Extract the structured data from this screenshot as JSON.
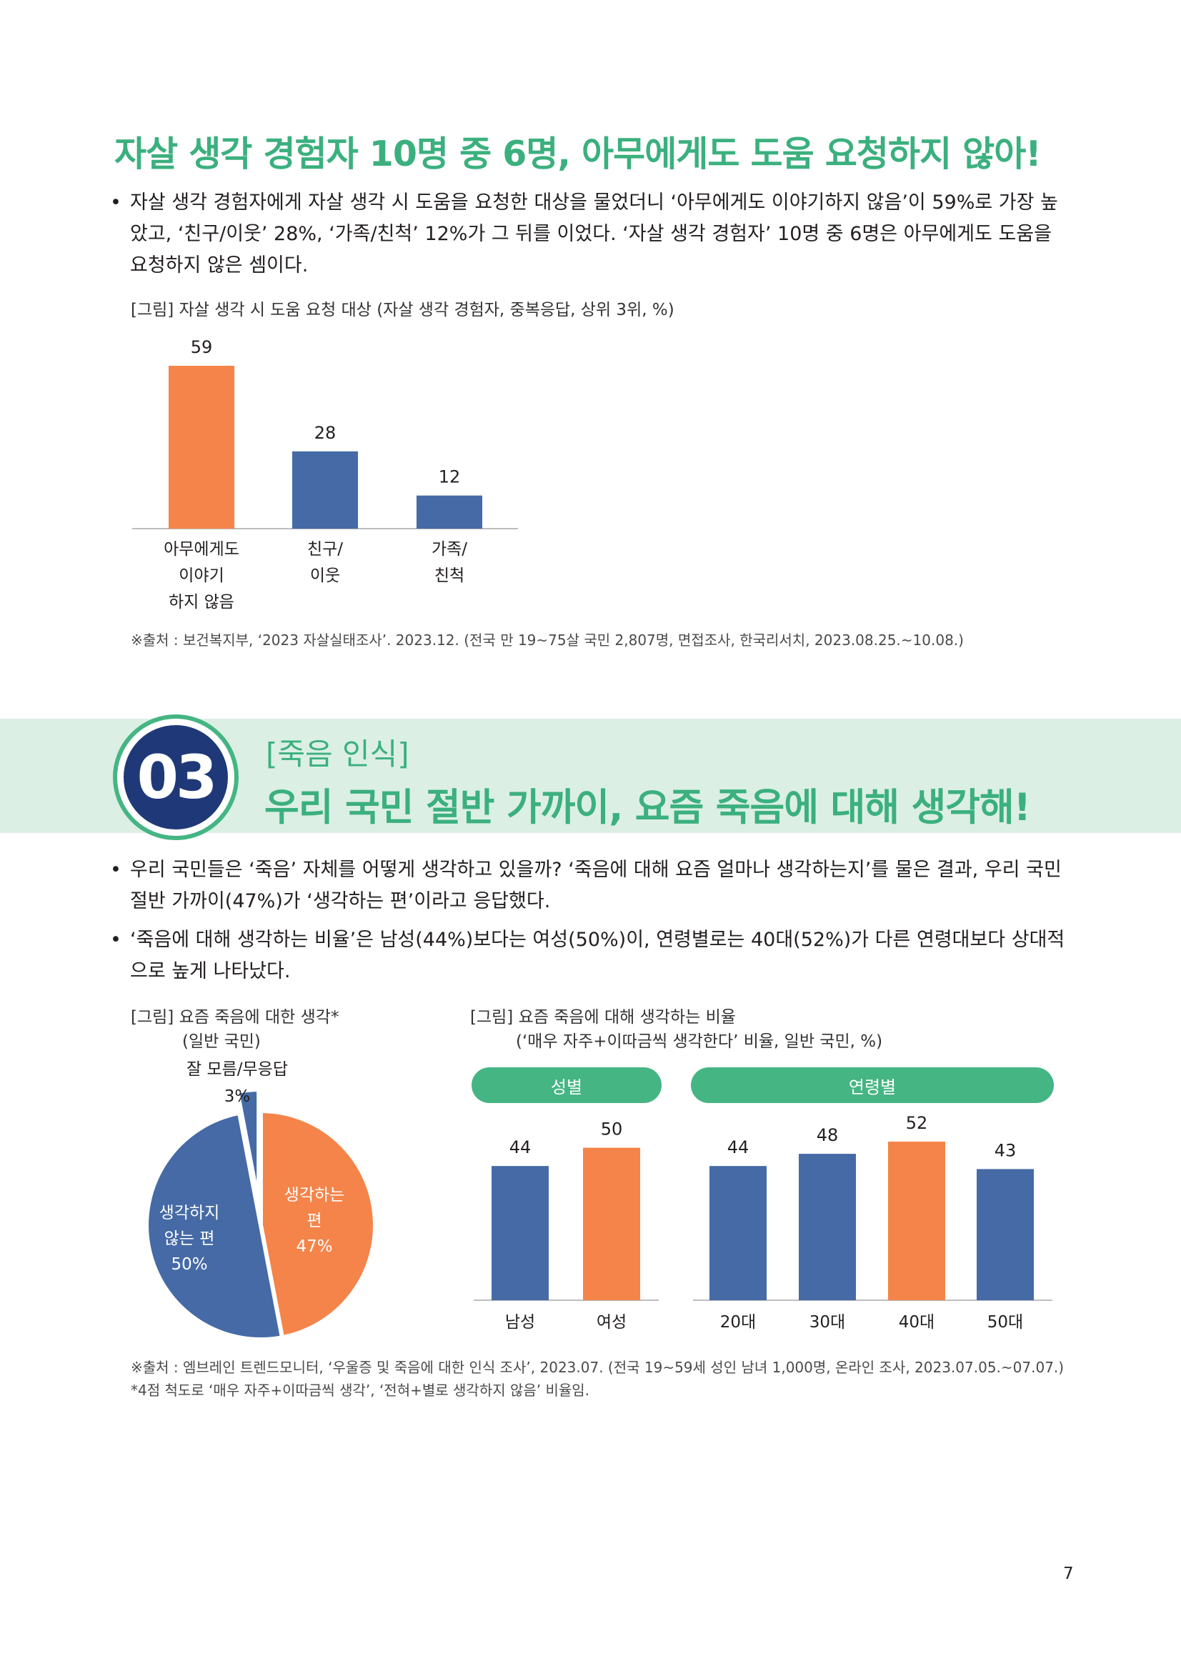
{
  "section1": {
    "title": "자살 생각 경험자 10명 중 6명, 아무에게도 도움 요청하지 않아!",
    "bullet": "자살 생각 경험자에게 자살 생각 시 도움을 요청한 대상을 물었더니 ‘아무에게도 이야기하지 않음’이 59%로 가장 높았고, ‘친구/이웃’ 28%, ‘가족/친척’ 12%가 그 뒤를 이었다. ‘자살 생각 경험자’ 10명 중 6명은 아무에게도 도움을 요청하지 않은 셈이다.",
    "figure_caption": "[그림] 자살 생각 시 도움 요청 대상 (자살 생각 경험자, 중복응답, 상위 3위, %)",
    "source": "※출처 : 보건복지부, ‘2023 자살실태조사’. 2023.12. (전국 만 19~75살 국민 2,807명, 면접조사, 한국리서치, 2023.08.25.~10.08.)"
  },
  "section2": {
    "number": "03",
    "tag": "[죽음 인식]",
    "title": "우리 국민 절반 가까이, 요즘 죽음에 대해 생각해!",
    "bullets": [
      "우리 국민들은 ‘죽음’ 자체를 어떻게 생각하고 있을까? ‘죽음에 대해 요즘 얼마나 생각하는지’를 물은 결과, 우리 국민 절반 가까이(47%)가 ‘생각하는 편’이라고 응답했다.",
      "‘죽음에 대해 생각하는 비율’은 남성(44%)보다는 여성(50%)이, 연령별로는 40대(52%)가 다른 연령대보다 상대적으로 높게 나타났다."
    ],
    "pie_caption_line1": "[그림] 요즘 죽음에 대한 생각*",
    "pie_caption_line2": "(일반 국민)",
    "bar_caption_line1": "[그림] 요즘 죽음에 대해 생각하는 비율",
    "bar_caption_line2": "(‘매우 자주+이따금씩 생각한다’ 비율, 일반 국민, %)",
    "pill_gender": "성별",
    "pill_age": "연령별",
    "source_line1": "※출처 : 엠브레인 트렌드모니터, ‘우울증 및 죽음에 대한 인식 조사’, 2023.07. (전국 19~59세 성인 남녀 1,000명, 온라인 조사, 2023.07.05.~07.07.)",
    "source_line2": "*4점 척도로 ‘매우 자주+이따금씩 생각’, ‘전혀+별로 생각하지 않음’ 비율임."
  },
  "page_number": "7",
  "colors": {
    "orange": "#f5844a",
    "blue": "#456aa6",
    "green": "#45b583",
    "navy": "#1f3978"
  },
  "chart_data": [
    {
      "type": "bar",
      "categories": [
        [
          "아무에게도",
          "이야기",
          "하지 않음"
        ],
        [
          "친구/",
          "이웃"
        ],
        [
          "가족/",
          "친척"
        ]
      ],
      "values": [
        59,
        28,
        12
      ],
      "value_labels": [
        "59",
        "28",
        "12"
      ],
      "highlight_index": 0,
      "ylim": [
        0,
        59
      ]
    },
    {
      "type": "pie",
      "slices": [
        {
          "label": [
            "생각하는",
            "편",
            "47%"
          ],
          "value": 47,
          "color": "#f5844a"
        },
        {
          "label": [
            "생각하지",
            "않는 편",
            "50%"
          ],
          "value": 50,
          "color": "#456aa6"
        },
        {
          "label": [
            "잘 모름/무응답",
            "3%"
          ],
          "value": 3,
          "color": "#456aa6",
          "exploded": true
        }
      ]
    },
    {
      "type": "bar",
      "groups": [
        {
          "name": "성별",
          "categories": [
            "남성",
            "여성"
          ],
          "values": [
            44,
            50
          ],
          "value_labels": [
            "44",
            "50"
          ],
          "highlight_index": 1
        },
        {
          "name": "연령별",
          "categories": [
            "20대",
            "30대",
            "40대",
            "50대"
          ],
          "values": [
            44,
            48,
            52,
            43
          ],
          "value_labels": [
            "44",
            "48",
            "52",
            "43"
          ],
          "highlight_index": 2
        }
      ],
      "ylim": [
        0,
        52
      ]
    }
  ]
}
